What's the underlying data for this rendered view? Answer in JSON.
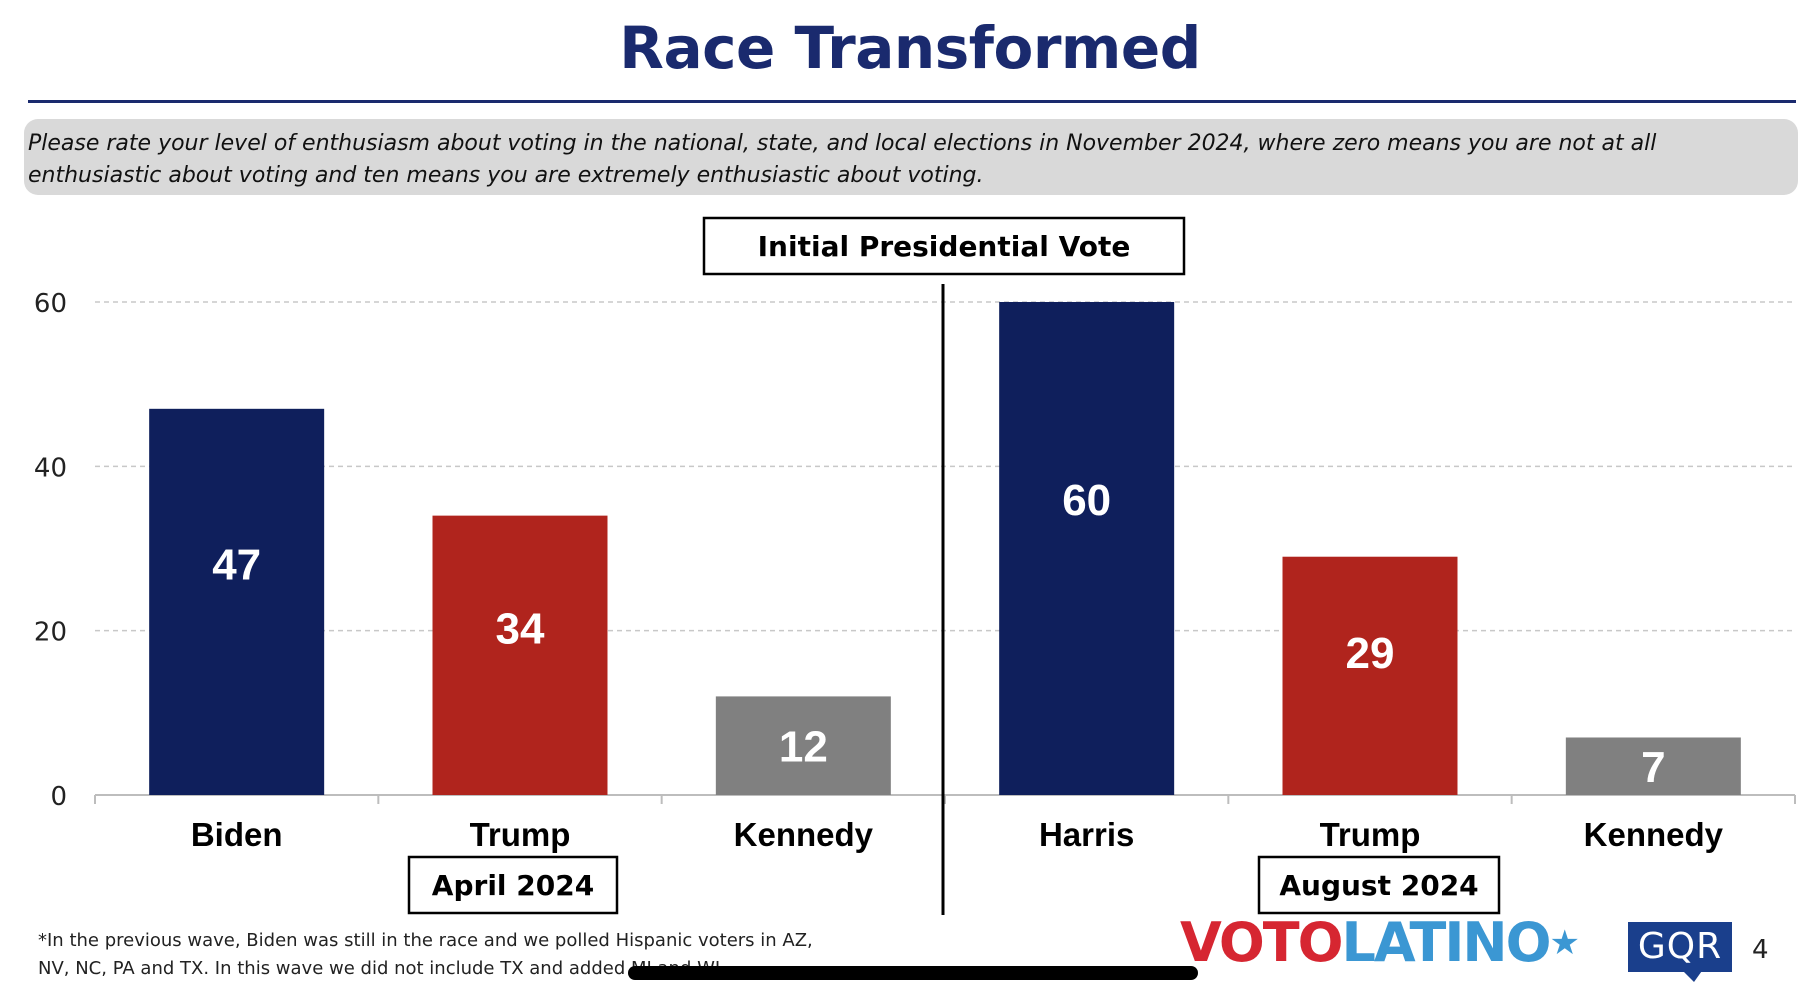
{
  "page": {
    "title": "Race Transformed",
    "question": "Please rate your level of enthusiasm about voting in the national, state, and local elections in November 2024, where zero means you are not at all enthusiastic about voting and ten means you are extremely enthusiastic about voting.",
    "footnote_line1": "*In the previous wave, Biden was still in the race and we polled Hispanic voters in AZ,",
    "footnote_line2": "NV, NC, PA and TX. In this wave we did not include TX and added MI and WI.",
    "page_number": "4"
  },
  "logos": {
    "voto": "VOTO",
    "latino": "LATINO",
    "voto_star": "★",
    "gqr": "GQR"
  },
  "colors": {
    "title": "#1a2a6e",
    "democrat": "#0f1f5c",
    "republican": "#b0241d",
    "independent": "#808080",
    "grid": "#c8c8c8"
  },
  "chart_data": {
    "type": "bar",
    "title": "Initial Presidential Vote",
    "ylim": [
      0,
      60
    ],
    "yticks": [
      0,
      20,
      40,
      60
    ],
    "grid": true,
    "groups": [
      {
        "label": "April 2024",
        "categories": [
          "Biden",
          "Trump",
          "Kennedy"
        ],
        "values": [
          47,
          34,
          12
        ],
        "parties": [
          "democrat",
          "republican",
          "independent"
        ]
      },
      {
        "label": "August 2024",
        "categories": [
          "Harris",
          "Trump",
          "Kennedy"
        ],
        "values": [
          60,
          29,
          7
        ],
        "parties": [
          "democrat",
          "republican",
          "independent"
        ]
      }
    ]
  }
}
